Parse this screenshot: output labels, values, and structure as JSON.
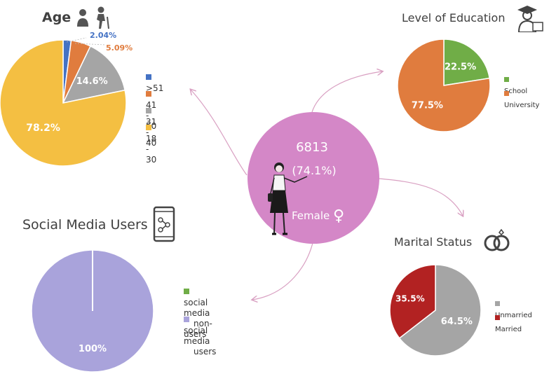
{
  "colors": {
    "blue": "#4472C4",
    "orange": "#E07C3E",
    "gray": "#A5A5A5",
    "yellow": "#F4BF42",
    "green": "#70AD47",
    "purple": "#A9A3DB",
    "darkred": "#B22222",
    "pink": "#D487C7",
    "arrow": "#D9A0C2"
  },
  "center": {
    "count": "6813",
    "percent": "(74.1%)",
    "label": "Female",
    "symbol": "♀"
  },
  "chart_data": [
    {
      "type": "pie",
      "title": "Age",
      "categories": [
        ">51",
        "41 - 50",
        "31 - 40",
        "18 - 30"
      ],
      "values": [
        2.04,
        5.09,
        14.6,
        78.2
      ],
      "labels": [
        "2.04%",
        "5.09%",
        "14.6%",
        "78.2%"
      ],
      "colors": [
        "#4472C4",
        "#E07C3E",
        "#A5A5A5",
        "#F4BF42"
      ],
      "legend_position": "right"
    },
    {
      "type": "pie",
      "title": "Level of Education",
      "categories": [
        "School",
        "University"
      ],
      "values": [
        22.5,
        77.5
      ],
      "labels": [
        "22.5%",
        "77.5%"
      ],
      "colors": [
        "#70AD47",
        "#E07C3E"
      ],
      "legend_position": "right"
    },
    {
      "type": "pie",
      "title": "Social Media Users",
      "categories": [
        "social media non-users",
        "social media users"
      ],
      "legend_lines": [
        [
          "social media",
          "non-users"
        ],
        [
          "social media",
          "users"
        ]
      ],
      "values": [
        0,
        100
      ],
      "labels": [
        "",
        "100%"
      ],
      "colors": [
        "#70AD47",
        "#A9A3DB"
      ],
      "legend_position": "right"
    },
    {
      "type": "pie",
      "title": "Marital Status",
      "categories": [
        "Unmarried",
        "Married"
      ],
      "values": [
        64.5,
        35.5
      ],
      "labels": [
        "64.5%",
        "35.5%"
      ],
      "colors": [
        "#A5A5A5",
        "#B22222"
      ],
      "legend_position": "right"
    }
  ]
}
